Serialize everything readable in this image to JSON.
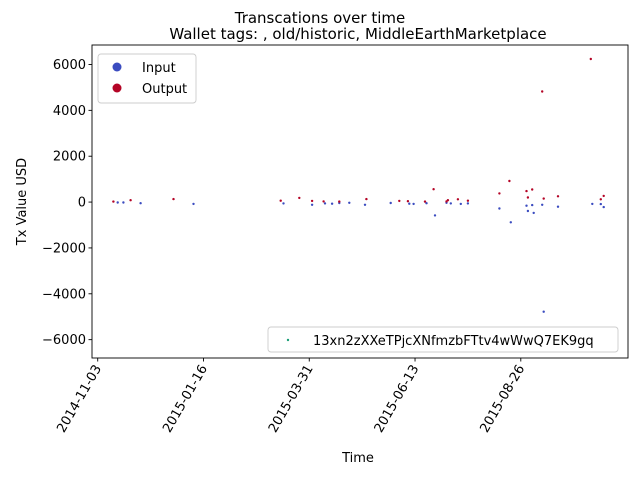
{
  "chart_data": {
    "type": "scatter",
    "title": "Transcations over time",
    "subtitle": "Wallet tags: , old/historic, MiddleEarthMarketplace",
    "xlabel": "Time",
    "ylabel": "Tx Value USD",
    "x_ticks": [
      "2014-11-03",
      "2015-01-16",
      "2015-03-31",
      "2015-06-13",
      "2015-08-26"
    ],
    "y_ticks": [
      "−6000",
      "−4000",
      "−2000",
      "0",
      "2000",
      "4000",
      "6000"
    ],
    "y_tick_values": [
      -6000,
      -4000,
      -2000,
      0,
      2000,
      4000,
      6000
    ],
    "xlim": [
      "2014-10-30",
      "2015-11-09"
    ],
    "ylim": [
      -6800,
      6850
    ],
    "grid": false,
    "legend_top": {
      "placement": "upper-left",
      "entries": [
        {
          "label": "Input",
          "color": "#3b4cc0"
        },
        {
          "label": "Output",
          "color": "#b40426"
        }
      ]
    },
    "legend_bottom": {
      "placement": "lower-right",
      "entries": [
        {
          "label": "13xn2zXXeTPjcXNfmzbFTtv4wWwQ7EK9gq",
          "color": "#1b9e77"
        }
      ]
    },
    "series": [
      {
        "name": "Input",
        "color": "#3b4cc0",
        "points": [
          [
            "2014-11-17",
            -20
          ],
          [
            "2014-11-21",
            -20
          ],
          [
            "2014-12-03",
            -50
          ],
          [
            "2015-01-09",
            -80
          ],
          [
            "2015-03-13",
            -60
          ],
          [
            "2015-04-02",
            -120
          ],
          [
            "2015-04-11",
            -60
          ],
          [
            "2015-04-16",
            -70
          ],
          [
            "2015-04-21",
            -40
          ],
          [
            "2015-04-28",
            -30
          ],
          [
            "2015-05-09",
            -120
          ],
          [
            "2015-05-27",
            -40
          ],
          [
            "2015-06-09",
            -70
          ],
          [
            "2015-06-12",
            -80
          ],
          [
            "2015-06-21",
            -50
          ],
          [
            "2015-06-27",
            -580
          ],
          [
            "2015-07-05",
            -30
          ],
          [
            "2015-07-08",
            -60
          ],
          [
            "2015-07-15",
            -80
          ],
          [
            "2015-07-20",
            -60
          ],
          [
            "2015-08-11",
            -280
          ],
          [
            "2015-08-19",
            -880
          ],
          [
            "2015-08-30",
            -160
          ],
          [
            "2015-08-31",
            -390
          ],
          [
            "2015-09-03",
            -130
          ],
          [
            "2015-09-04",
            -470
          ],
          [
            "2015-09-10",
            -120
          ],
          [
            "2015-09-11",
            -4780
          ],
          [
            "2015-09-21",
            -200
          ],
          [
            "2015-10-15",
            -80
          ],
          [
            "2015-10-21",
            -90
          ],
          [
            "2015-10-23",
            -220
          ]
        ]
      },
      {
        "name": "Output",
        "color": "#b40426",
        "points": [
          [
            "2014-11-14",
            20
          ],
          [
            "2014-11-26",
            80
          ],
          [
            "2014-12-26",
            130
          ],
          [
            "2015-03-11",
            60
          ],
          [
            "2015-03-24",
            180
          ],
          [
            "2015-04-02",
            50
          ],
          [
            "2015-04-10",
            30
          ],
          [
            "2015-04-21",
            20
          ],
          [
            "2015-05-10",
            130
          ],
          [
            "2015-06-02",
            50
          ],
          [
            "2015-06-08",
            40
          ],
          [
            "2015-06-20",
            20
          ],
          [
            "2015-06-26",
            560
          ],
          [
            "2015-07-05",
            30
          ],
          [
            "2015-07-06",
            80
          ],
          [
            "2015-07-13",
            120
          ],
          [
            "2015-07-20",
            60
          ],
          [
            "2015-08-11",
            380
          ],
          [
            "2015-08-18",
            920
          ],
          [
            "2015-08-30",
            480
          ],
          [
            "2015-08-31",
            200
          ],
          [
            "2015-09-03",
            550
          ],
          [
            "2015-09-10",
            4820
          ],
          [
            "2015-09-11",
            150
          ],
          [
            "2015-09-21",
            250
          ],
          [
            "2015-10-14",
            6240
          ],
          [
            "2015-10-21",
            120
          ],
          [
            "2015-10-23",
            270
          ]
        ]
      }
    ]
  }
}
